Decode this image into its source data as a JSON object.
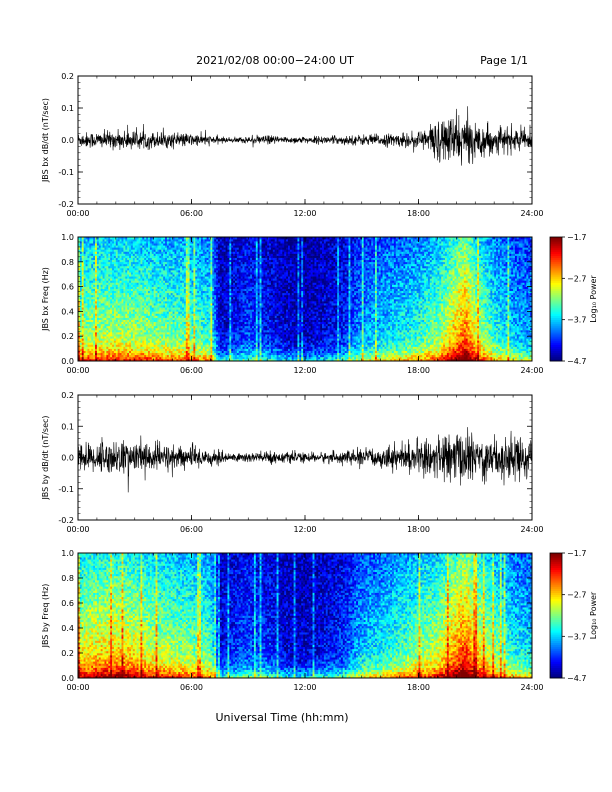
{
  "header": {
    "title": "2021/02/08  00:00−24:00 UT",
    "page": "Page 1/1"
  },
  "footer": {
    "xlabel": "Universal Time (hh:mm)"
  },
  "chart_data": [
    {
      "type": "line",
      "ylabel": "JBS bx dB/dt (nT/sec)",
      "xlim": [
        "00:00",
        "24:00"
      ],
      "ylim": [
        -0.2,
        0.2
      ],
      "x_ticks": [
        "00:00",
        "06:00",
        "12:00",
        "18:00",
        "24:00"
      ],
      "y_ticks": [
        -0.2,
        -0.1,
        0.0,
        0.1,
        0.2
      ],
      "y_tick_labels": [
        "-0.2",
        "-0.1",
        "0.0",
        "0.1",
        "0.2"
      ],
      "envelope": {
        "t_hours": [
          0,
          1,
          2,
          3,
          4,
          5,
          6,
          7,
          8,
          9,
          10,
          11,
          12,
          13,
          14,
          15,
          16,
          17,
          18,
          19,
          20,
          21,
          22,
          23,
          24
        ],
        "amplitude": [
          0.025,
          0.028,
          0.03,
          0.03,
          0.028,
          0.025,
          0.022,
          0.015,
          0.008,
          0.012,
          0.015,
          0.012,
          0.012,
          0.013,
          0.015,
          0.018,
          0.02,
          0.022,
          0.03,
          0.07,
          0.09,
          0.06,
          0.045,
          0.04,
          0.03
        ]
      },
      "color": "#000000"
    },
    {
      "type": "heatmap",
      "ylabel": "JBS bx Freq (Hz)",
      "xlim": [
        "00:00",
        "24:00"
      ],
      "ylim": [
        0.0,
        1.0
      ],
      "x_ticks": [
        "00:00",
        "06:00",
        "12:00",
        "18:00",
        "24:00"
      ],
      "y_ticks": [
        0.0,
        0.2,
        0.4,
        0.6,
        0.8,
        1.0
      ],
      "y_tick_labels": [
        "0.0",
        "0.2",
        "0.4",
        "0.6",
        "0.8",
        "1.0"
      ],
      "colorbar": {
        "label": "Log₁₀ Power",
        "ticks": [
          -1.7,
          -2.7,
          -3.7,
          -4.7
        ],
        "tick_labels": [
          "−1.7",
          "−2.7",
          "−3.7",
          "−4.7"
        ],
        "range": [
          -4.7,
          -1.7
        ]
      },
      "activity": {
        "t_hours": [
          0,
          1,
          2,
          3,
          4,
          5,
          6,
          7,
          7.5,
          8,
          9,
          10,
          11,
          12,
          13,
          14,
          15,
          16,
          17,
          18,
          19,
          20,
          20.5,
          21,
          22,
          23,
          24
        ],
        "level": [
          0.55,
          0.58,
          0.6,
          0.58,
          0.55,
          0.52,
          0.5,
          0.45,
          0.1,
          0.12,
          0.2,
          0.15,
          0.08,
          0.05,
          0.1,
          0.15,
          0.3,
          0.35,
          0.4,
          0.45,
          0.55,
          0.75,
          0.85,
          0.65,
          0.45,
          0.35,
          0.3
        ]
      }
    },
    {
      "type": "line",
      "ylabel": "JBS by dB/dt (nT/sec)",
      "xlim": [
        "00:00",
        "24:00"
      ],
      "ylim": [
        -0.2,
        0.2
      ],
      "x_ticks": [
        "00:00",
        "06:00",
        "12:00",
        "18:00",
        "24:00"
      ],
      "y_ticks": [
        -0.2,
        -0.1,
        0.0,
        0.1,
        0.2
      ],
      "y_tick_labels": [
        "-0.2",
        "-0.1",
        "0.0",
        "0.1",
        "0.2"
      ],
      "envelope": {
        "t_hours": [
          0,
          1,
          2,
          3,
          4,
          5,
          6,
          7,
          8,
          9,
          10,
          11,
          12,
          13,
          14,
          15,
          16,
          17,
          18,
          19,
          20,
          21,
          22,
          23,
          24
        ],
        "amplitude": [
          0.045,
          0.055,
          0.06,
          0.055,
          0.05,
          0.045,
          0.04,
          0.03,
          0.015,
          0.02,
          0.022,
          0.018,
          0.015,
          0.018,
          0.022,
          0.028,
          0.035,
          0.045,
          0.055,
          0.07,
          0.09,
          0.08,
          0.075,
          0.08,
          0.065
        ]
      },
      "color": "#000000"
    },
    {
      "type": "heatmap",
      "ylabel": "JBS by Freq (Hz)",
      "xlim": [
        "00:00",
        "24:00"
      ],
      "ylim": [
        0.0,
        1.0
      ],
      "x_ticks": [
        "00:00",
        "06:00",
        "12:00",
        "18:00",
        "24:00"
      ],
      "y_ticks": [
        0.0,
        0.2,
        0.4,
        0.6,
        0.8,
        1.0
      ],
      "y_tick_labels": [
        "0.0",
        "0.2",
        "0.4",
        "0.6",
        "0.8",
        "1.0"
      ],
      "colorbar": {
        "label": "Log₁₀ Power",
        "ticks": [
          -1.7,
          -2.7,
          -3.7,
          -4.7
        ],
        "tick_labels": [
          "−1.7",
          "−2.7",
          "−3.7",
          "−4.7"
        ],
        "range": [
          -4.7,
          -1.7
        ]
      },
      "activity": {
        "t_hours": [
          0,
          1,
          2,
          3,
          4,
          5,
          6,
          7,
          7.5,
          8,
          9,
          10,
          11,
          12,
          13,
          14,
          15,
          16,
          17,
          18,
          19,
          20,
          20.5,
          21,
          22,
          23,
          24
        ],
        "level": [
          0.65,
          0.7,
          0.72,
          0.68,
          0.62,
          0.58,
          0.55,
          0.5,
          0.12,
          0.15,
          0.22,
          0.18,
          0.1,
          0.08,
          0.12,
          0.18,
          0.35,
          0.4,
          0.48,
          0.55,
          0.62,
          0.8,
          0.9,
          0.72,
          0.55,
          0.42,
          0.38
        ]
      }
    }
  ]
}
